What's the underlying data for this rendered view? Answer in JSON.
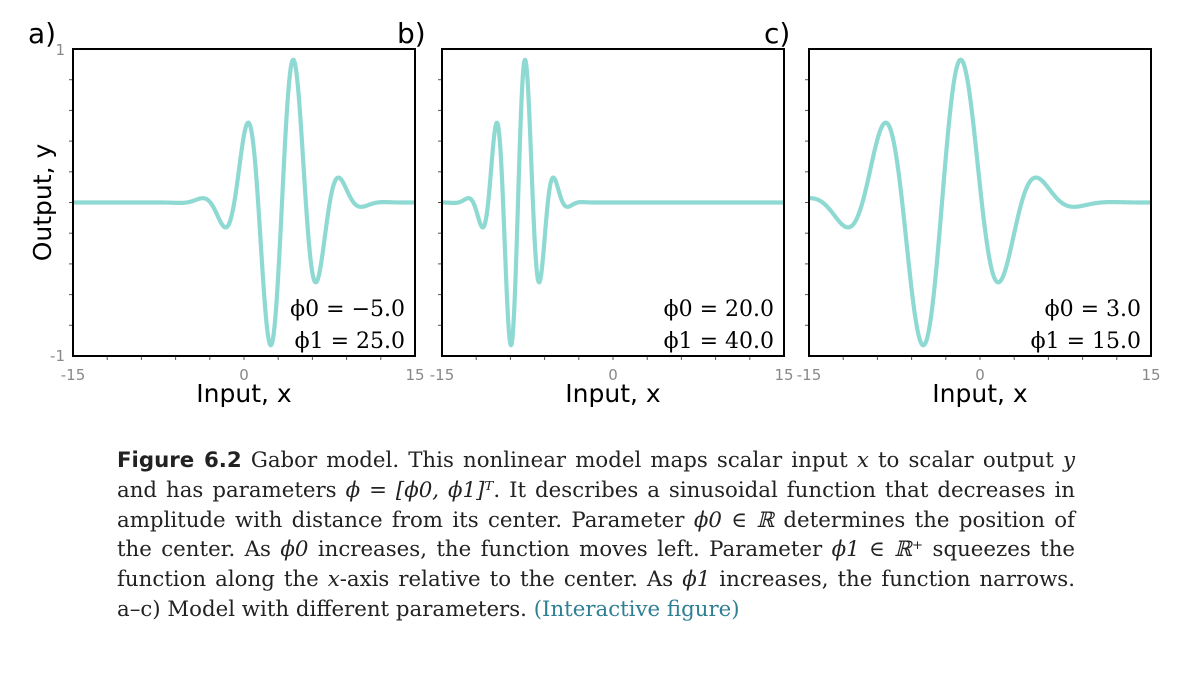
{
  "chart_data": [
    {
      "type": "line",
      "panel_label": "a)",
      "xlabel": "Input, x",
      "ylabel": "Output, y",
      "xlim": [
        -15,
        15
      ],
      "ylim": [
        -1,
        1
      ],
      "x_ticks": [
        "-15",
        "0",
        "15"
      ],
      "y_ticks": [
        "1",
        "-1"
      ],
      "series": [
        {
          "model": "gabor",
          "phi0": -5.0,
          "phi1": 25.0,
          "color": "#8fd9d3"
        }
      ],
      "annotations": [
        "ϕ0 = −5.0",
        "ϕ1 = 25.0"
      ]
    },
    {
      "type": "line",
      "panel_label": "b)",
      "xlabel": "Input, x",
      "ylabel": "",
      "xlim": [
        -15,
        15
      ],
      "ylim": [
        -1,
        1
      ],
      "x_ticks": [
        "-15",
        "0",
        "15"
      ],
      "y_ticks": [],
      "series": [
        {
          "model": "gabor",
          "phi0": 20.0,
          "phi1": 40.0,
          "color": "#8fd9d3"
        }
      ],
      "annotations": [
        "ϕ0 = 20.0",
        "ϕ1 = 40.0"
      ]
    },
    {
      "type": "line",
      "panel_label": "c)",
      "xlabel": "Input, x",
      "ylabel": "",
      "xlim": [
        -15,
        15
      ],
      "ylim": [
        -1,
        1
      ],
      "x_ticks": [
        "-15",
        "0",
        "15"
      ],
      "y_ticks": [],
      "series": [
        {
          "model": "gabor",
          "phi0": 3.0,
          "phi1": 15.0,
          "color": "#8fd9d3"
        }
      ],
      "annotations": [
        "ϕ0 = 3.0",
        "ϕ1 = 15.0"
      ]
    }
  ],
  "caption": {
    "title": "Figure 6.2",
    "t1": " Gabor model. This nonlinear model maps scalar input ",
    "x1": "x",
    "t2": " to scalar output ",
    "y1": "y",
    "t3": " and has parameters ",
    "phi_vec": "ϕ = [ϕ0, ϕ1]ᵀ",
    "t4": ". It describes a sinusoidal function that decreases in amplitude with distance from its center. Parameter ",
    "phi0_real": "ϕ0 ∈ ℝ",
    "t5": " determines the position of the center. As ",
    "phi0_a": "ϕ0",
    "t6": " increases, the function moves left. Parameter ",
    "phi1_realplus": "ϕ1 ∈ ℝ⁺",
    "t7": " squeezes the function along the ",
    "x2": "x",
    "t8": "-axis relative to the center. As ",
    "phi1_a": "ϕ1",
    "t9": " increases, the function narrows. a–c) Model with different parameters. ",
    "link": "(Interactive figure)"
  }
}
